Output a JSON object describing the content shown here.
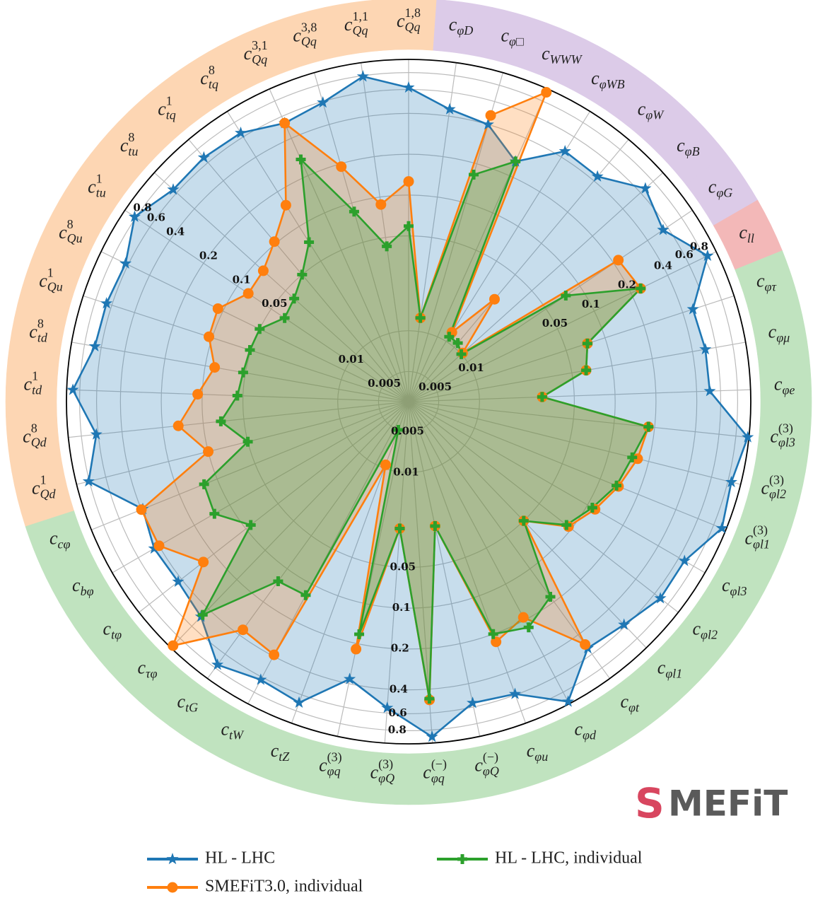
{
  "chart_data": {
    "type": "radar",
    "rscale": "log",
    "rlim": [
      0.003,
      1
    ],
    "rticks": [
      0.005,
      0.01,
      0.05,
      0.1,
      0.2,
      0.4,
      0.6,
      0.8
    ],
    "grid": true,
    "categories": [
      {
        "base": "c",
        "sub": "Qq",
        "sup": "1,8"
      },
      {
        "base": "c",
        "sub": "φD"
      },
      {
        "base": "c",
        "sub": "φ□"
      },
      {
        "base": "c",
        "sub": "WWW"
      },
      {
        "base": "c",
        "sub": "φWB"
      },
      {
        "base": "c",
        "sub": "φW"
      },
      {
        "base": "c",
        "sub": "φB"
      },
      {
        "base": "c",
        "sub": "φG"
      },
      {
        "base": "c",
        "sub": "ll"
      },
      {
        "base": "c",
        "sub": "φτ"
      },
      {
        "base": "c",
        "sub": "φμ"
      },
      {
        "base": "c",
        "sub": "φe"
      },
      {
        "base": "c",
        "sub": "φl3",
        "sup": "(3)"
      },
      {
        "base": "c",
        "sub": "φl2",
        "sup": "(3)"
      },
      {
        "base": "c",
        "sub": "φl1",
        "sup": "(3)"
      },
      {
        "base": "c",
        "sub": "φl3"
      },
      {
        "base": "c",
        "sub": "φl2"
      },
      {
        "base": "c",
        "sub": "φl1"
      },
      {
        "base": "c",
        "sub": "φt"
      },
      {
        "base": "c",
        "sub": "φd"
      },
      {
        "base": "c",
        "sub": "φu"
      },
      {
        "base": "c",
        "sub": "φQ",
        "sup": "(−)"
      },
      {
        "base": "c",
        "sub": "φq",
        "sup": "(−)"
      },
      {
        "base": "c",
        "sub": "φQ",
        "sup": "(3)"
      },
      {
        "base": "c",
        "sub": "φq",
        "sup": "(3)"
      },
      {
        "base": "c",
        "sub": "tZ"
      },
      {
        "base": "c",
        "sub": "tW"
      },
      {
        "base": "c",
        "sub": "tG"
      },
      {
        "base": "c",
        "sub": "τφ"
      },
      {
        "base": "c",
        "sub": "tφ"
      },
      {
        "base": "c",
        "sub": "bφ"
      },
      {
        "base": "c",
        "sub": "cφ"
      },
      {
        "base": "c",
        "sub": "Qd",
        "sup": "1"
      },
      {
        "base": "c",
        "sub": "Qd",
        "sup": "8"
      },
      {
        "base": "c",
        "sub": "td",
        "sup": "1"
      },
      {
        "base": "c",
        "sub": "td",
        "sup": "8"
      },
      {
        "base": "c",
        "sub": "Qu",
        "sup": "1"
      },
      {
        "base": "c",
        "sub": "Qu",
        "sup": "8"
      },
      {
        "base": "c",
        "sub": "tu",
        "sup": "1"
      },
      {
        "base": "c",
        "sub": "tu",
        "sup": "8"
      },
      {
        "base": "c",
        "sub": "tq",
        "sup": "1"
      },
      {
        "base": "c",
        "sub": "tq",
        "sup": "8"
      },
      {
        "base": "c",
        "sub": "Qq",
        "sup": "3,1"
      },
      {
        "base": "c",
        "sub": "Qq",
        "sup": "3,8"
      },
      {
        "base": "c",
        "sub": "Qq",
        "sup": "1,1"
      }
    ],
    "ring_colors": [
      "#fdd6b3",
      "#dccbe8",
      "#dccbe8",
      "#dccbe8",
      "#dccbe8",
      "#dccbe8",
      "#dccbe8",
      "#dccbe8",
      "#f3b8b8",
      "#c0e3bf",
      "#c0e3bf",
      "#c0e3bf",
      "#c0e3bf",
      "#c0e3bf",
      "#c0e3bf",
      "#c0e3bf",
      "#c0e3bf",
      "#c0e3bf",
      "#c0e3bf",
      "#c0e3bf",
      "#c0e3bf",
      "#c0e3bf",
      "#c0e3bf",
      "#c0e3bf",
      "#c0e3bf",
      "#c0e3bf",
      "#c0e3bf",
      "#c0e3bf",
      "#c0e3bf",
      "#c0e3bf",
      "#c0e3bf",
      "#c0e3bf",
      "#fdd6b3",
      "#fdd6b3",
      "#fdd6b3",
      "#fdd6b3",
      "#fdd6b3",
      "#fdd6b3",
      "#fdd6b3",
      "#fdd6b3",
      "#fdd6b3",
      "#fdd6b3",
      "#fdd6b3",
      "#fdd6b3",
      "#fdd6b3"
    ],
    "series": [
      {
        "name": "HL - LHC",
        "color": "#1f77b4",
        "marker": "star",
        "values": [
          0.62,
          0.45,
          0.4,
          0.26,
          0.45,
          0.44,
          0.67,
          0.55,
          0.85,
          0.48,
          0.5,
          0.5,
          0.98,
          0.85,
          0.93,
          0.67,
          0.68,
          0.58,
          0.53,
          0.96,
          0.59,
          0.56,
          0.9,
          0.55,
          0.37,
          0.69,
          0.63,
          0.75,
          0.48,
          0.43,
          0.44,
          0.39,
          0.81,
          0.62,
          0.9,
          0.67,
          0.66,
          0.63,
          0.82,
          0.65,
          0.67,
          0.65,
          0.53,
          0.59,
          0.79
        ]
      },
      {
        "name": "SMEFiT3.0, individual",
        "color": "#ff7f0e",
        "marker": "circle",
        "values": [
          0.126,
          0.0126,
          0.47,
          0.94,
          0.012,
          0.029,
          0.0103,
          0.22,
          0.24,
          0.073,
          0.064,
          0.029,
          0.18,
          0.165,
          0.14,
          0.116,
          0.094,
          0.05,
          0.49,
          0.19,
          0.23,
          0.026,
          0.48,
          0.026,
          0.22,
          0.0094,
          0.39,
          0.36,
          0.95,
          0.25,
          0.4,
          0.4,
          0.1,
          0.153,
          0.108,
          0.085,
          0.106,
          0.11,
          0.08,
          0.083,
          0.104,
          0.153,
          0.53,
          0.19,
          0.088
        ]
      },
      {
        "name": "HL - LHC, individual",
        "color": "#2ca02c",
        "marker": "plus",
        "values": [
          0.059,
          0.0126,
          0.165,
          0.26,
          0.011,
          0.011,
          0.01,
          0.075,
          0.24,
          0.073,
          0.064,
          0.029,
          0.18,
          0.15,
          0.135,
          0.11,
          0.09,
          0.05,
          0.18,
          0.23,
          0.2,
          0.026,
          0.47,
          0.026,
          0.17,
          0.005,
          0.124,
          0.13,
          0.46,
          0.09,
          0.135,
          0.127,
          0.05,
          0.074,
          0.055,
          0.052,
          0.051,
          0.05,
          0.038,
          0.041,
          0.05,
          0.073,
          0.27,
          0.086,
          0.043
        ]
      }
    ],
    "legend": "bottom",
    "logo": {
      "mark": "S",
      "text": "MEFiT"
    }
  }
}
